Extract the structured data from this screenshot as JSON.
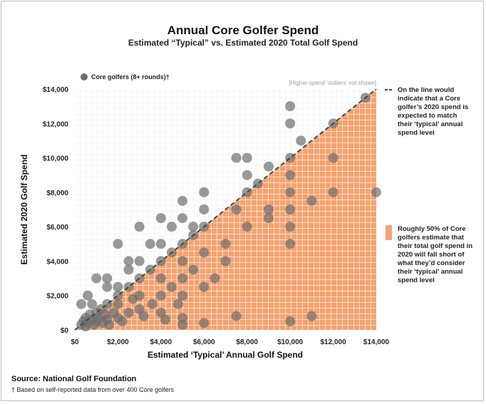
{
  "chart_data": {
    "type": "scatter",
    "title": "Annual Core Golfer Spend",
    "subtitle": "Estimated “Typical” vs. Estimated 2020 Total Golf Spend",
    "xlabel": "Estimated ‘Typical’ Annual Golf Spend",
    "ylabel": "Estimated 2020 Golf Spend",
    "xlim": [
      0,
      14000
    ],
    "ylim": [
      0,
      14000
    ],
    "x_ticks": [
      "$0",
      "$2,000",
      "$4,000",
      "$6,000",
      "$8,000",
      "$10,000",
      "$12,000",
      "$14,000"
    ],
    "y_ticks": [
      "$0",
      "$2,000",
      "$4,000",
      "$6,000",
      "$8,000",
      "$10,000",
      "$12,000",
      "$14,000"
    ],
    "grid": true,
    "legend_position": "top-left",
    "series": [
      {
        "name": "Core golfers (8+ rounds)†",
        "color": "#6e6e6e",
        "points": [
          [
            300,
            300
          ],
          [
            400,
            500
          ],
          [
            500,
            200
          ],
          [
            500,
            700
          ],
          [
            600,
            400
          ],
          [
            700,
            900
          ],
          [
            800,
            600
          ],
          [
            900,
            300
          ],
          [
            1000,
            1000
          ],
          [
            1000,
            500
          ],
          [
            1100,
            700
          ],
          [
            1200,
            1200
          ],
          [
            1300,
            400
          ],
          [
            1400,
            900
          ],
          [
            1500,
            1500
          ],
          [
            1500,
            600
          ],
          [
            1600,
            300
          ],
          [
            1800,
            1000
          ],
          [
            2000,
            2000
          ],
          [
            2000,
            700
          ],
          [
            2000,
            1500
          ],
          [
            2200,
            500
          ],
          [
            2500,
            2500
          ],
          [
            2500,
            1000
          ],
          [
            2700,
            1800
          ],
          [
            3000,
            3000
          ],
          [
            3000,
            1200
          ],
          [
            3000,
            2000
          ],
          [
            3200,
            800
          ],
          [
            3500,
            3500
          ],
          [
            3600,
            1500
          ],
          [
            4000,
            4000
          ],
          [
            4000,
            2000
          ],
          [
            4000,
            3000
          ],
          [
            4000,
            1000
          ],
          [
            4200,
            600
          ],
          [
            4500,
            4500
          ],
          [
            4500,
            2500
          ],
          [
            4800,
            1500
          ],
          [
            5000,
            5000
          ],
          [
            5000,
            3000
          ],
          [
            5000,
            2000
          ],
          [
            5000,
            4000
          ],
          [
            5000,
            700
          ],
          [
            5000,
            300
          ],
          [
            5500,
            5500
          ],
          [
            5500,
            3500
          ],
          [
            6000,
            6000
          ],
          [
            6000,
            2500
          ],
          [
            6000,
            4500
          ],
          [
            6000,
            400
          ],
          [
            6500,
            3000
          ],
          [
            7000,
            4000
          ],
          [
            7000,
            5000
          ],
          [
            7500,
            800
          ],
          [
            7500,
            7000
          ],
          [
            8000,
            8000
          ],
          [
            8000,
            6000
          ],
          [
            9000,
            6500
          ],
          [
            9000,
            7000
          ],
          [
            10000,
            10000
          ],
          [
            10000,
            9000
          ],
          [
            10000,
            8000
          ],
          [
            10000,
            7000
          ],
          [
            10000,
            6000
          ],
          [
            10000,
            5000
          ],
          [
            10000,
            500
          ],
          [
            11000,
            7500
          ],
          [
            11000,
            800
          ],
          [
            12000,
            12000
          ],
          [
            12000,
            10000
          ],
          [
            12000,
            8000
          ],
          [
            14000,
            8000
          ],
          [
            300,
            1500
          ],
          [
            600,
            2000
          ],
          [
            800,
            1500
          ],
          [
            1000,
            3000
          ],
          [
            1500,
            3000
          ],
          [
            1500,
            2500
          ],
          [
            2000,
            2500
          ],
          [
            2000,
            5000
          ],
          [
            2500,
            4000
          ],
          [
            2500,
            3500
          ],
          [
            3000,
            6000
          ],
          [
            3000,
            4000
          ],
          [
            3500,
            5000
          ],
          [
            4000,
            6500
          ],
          [
            4000,
            5000
          ],
          [
            4500,
            6000
          ],
          [
            5000,
            7500
          ],
          [
            5000,
            6500
          ],
          [
            5500,
            6000
          ],
          [
            6000,
            8000
          ],
          [
            6000,
            7000
          ],
          [
            7500,
            10000
          ],
          [
            8000,
            10000
          ],
          [
            8000,
            9000
          ],
          [
            8500,
            8500
          ],
          [
            9000,
            9500
          ],
          [
            10000,
            13000
          ],
          [
            10000,
            12000
          ],
          [
            10500,
            11000
          ],
          [
            13500,
            13500
          ]
        ]
      }
    ],
    "notes": {
      "outliers": "[Higher-spend ‘outliers’ not shown]",
      "line_annotation": [
        "On the line would",
        "indicate that a Core",
        "golfer’s 2020 spend is",
        "expected to match",
        "their ‘typical’ annual",
        "spend level"
      ],
      "area_annotation": [
        "Roughly 50% of Core",
        "golfers estimate that",
        "their total golf spend in",
        "2020 will fall short of",
        "what they’d consider",
        "their ‘typical’ annual",
        "spend level"
      ]
    },
    "colors": {
      "area": "#f6a26e",
      "line": "#2f4f4f",
      "points": "#6e6e6e"
    }
  },
  "footer": {
    "source": "Source: National Golf Foundation",
    "footnote": "† Based on self-reported data from over 400 Core golfers"
  }
}
